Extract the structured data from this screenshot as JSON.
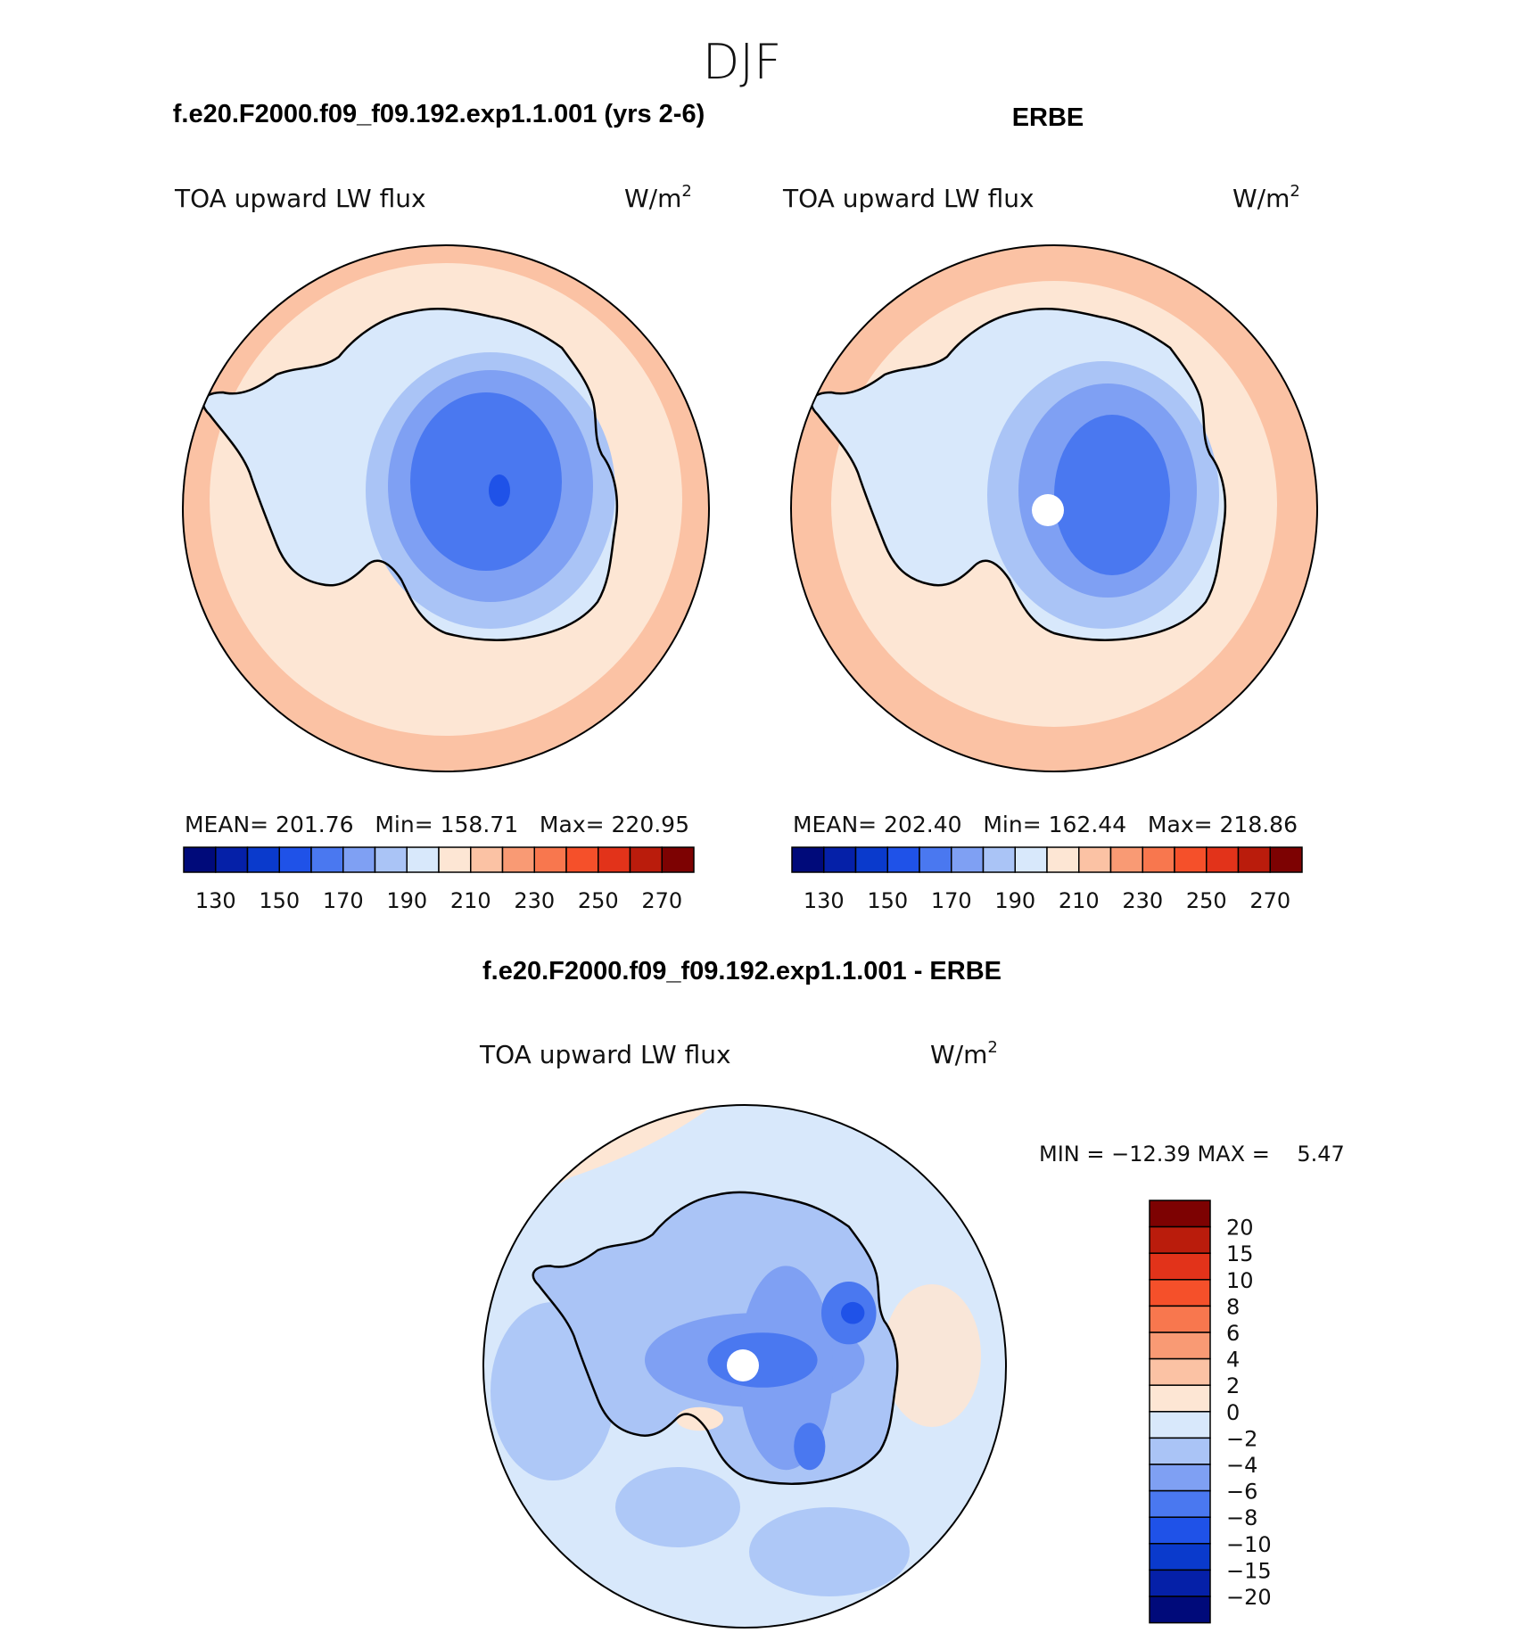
{
  "figure": {
    "season": "DJF",
    "panel_left": {
      "title": "f.e20.F2000.f09_f09.192.exp1.1.001 (yrs 2-6)",
      "variable": "TOA upward LW flux",
      "units_base": "W/m",
      "units_exp": "2",
      "stats": "MEAN= 201.76   Min= 158.71   Max= 220.95"
    },
    "panel_right": {
      "title": "ERBE",
      "variable": "TOA upward LW flux",
      "units_base": "W/m",
      "units_exp": "2",
      "stats": "MEAN= 202.40   Min= 162.44   Max= 218.86"
    },
    "panel_diff": {
      "title": "f.e20.F2000.f09_f09.192.exp1.1.001 - ERBE",
      "variable": "TOA upward LW flux",
      "units_base": "W/m",
      "units_exp": "2",
      "stats": "MIN = −12.39 MAX =    5.47"
    }
  },
  "colorbar_abs": {
    "labels": [
      "130",
      "150",
      "170",
      "190",
      "210",
      "230",
      "250",
      "270"
    ],
    "colors": [
      "#000a7a",
      "#0520a8",
      "#0a3acc",
      "#1f52e8",
      "#4a78f0",
      "#7fa0f3",
      "#aac4f6",
      "#d8e8fb",
      "#fde6d4",
      "#fbc2a4",
      "#f99a74",
      "#f8774e",
      "#f5502a",
      "#e2331a",
      "#ba1c0c",
      "#7d0202"
    ]
  },
  "colorbar_diff": {
    "labels": [
      "20",
      "15",
      "10",
      "8",
      "6",
      "4",
      "2",
      "0",
      "−2",
      "−4",
      "−6",
      "−8",
      "−10",
      "−15",
      "−20"
    ],
    "colors": [
      "#7d0202",
      "#ba1c0c",
      "#e2331a",
      "#f5502a",
      "#f8774e",
      "#f99a74",
      "#fbc2a4",
      "#fde6d4",
      "#d8e8fb",
      "#aac4f6",
      "#7fa0f3",
      "#4a78f0",
      "#1f52e8",
      "#0a3acc",
      "#0520a8",
      "#000a7a"
    ]
  }
}
